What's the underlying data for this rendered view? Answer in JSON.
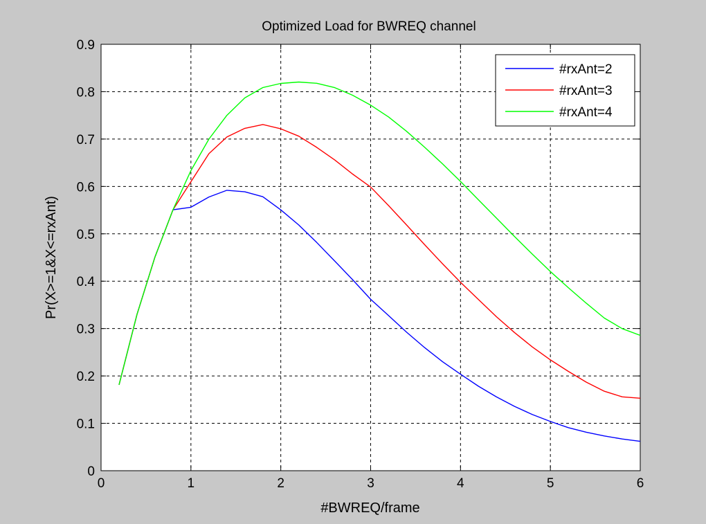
{
  "chart_data": {
    "type": "line",
    "title": "Optimized Load for BWREQ channel",
    "xlabel": "#BWREQ/frame",
    "ylabel": "Pr(X>=1&X<=rxAnt)",
    "xlim": [
      0,
      6
    ],
    "ylim": [
      0,
      0.9
    ],
    "xticks": [
      0,
      1,
      2,
      3,
      4,
      5,
      6
    ],
    "xtick_labels": [
      "0",
      "1",
      "2",
      "3",
      "4",
      "5",
      "6"
    ],
    "yticks": [
      0,
      0.1,
      0.2,
      0.3,
      0.4,
      0.5,
      0.6,
      0.7,
      0.8,
      0.9
    ],
    "ytick_labels": [
      "0",
      "0.1",
      "0.2",
      "0.3",
      "0.4",
      "0.5",
      "0.6",
      "0.7",
      "0.8",
      "0.9"
    ],
    "grid": true,
    "legend_position": "top-right",
    "x": [
      0.2,
      0.4,
      0.6,
      0.8,
      1.0,
      1.2,
      1.4,
      1.6,
      1.8,
      2.0,
      2.2,
      2.4,
      2.6,
      2.8,
      3.0,
      3.2,
      3.4,
      3.6,
      3.8,
      4.0,
      4.2,
      4.4,
      4.6,
      4.8,
      5.0,
      5.2,
      5.4,
      5.6,
      5.8,
      6.0
    ],
    "series": [
      {
        "name": "#rxAnt=2",
        "color": "#0000ff",
        "values": [
          0.1813,
          0.3297,
          0.4512,
          0.5507,
          0.5561,
          0.5777,
          0.5918,
          0.5886,
          0.5783,
          0.5505,
          0.5187,
          0.4817,
          0.4425,
          0.4031,
          0.3618,
          0.3272,
          0.2923,
          0.2599,
          0.2299,
          0.2036,
          0.1782,
          0.1557,
          0.1359,
          0.1185,
          0.1039,
          0.0909,
          0.0812,
          0.0734,
          0.0669,
          0.062
        ]
      },
      {
        "name": "#rxAnt=3",
        "color": "#ff0000",
        "values": [
          0.1813,
          0.3297,
          0.4512,
          0.5507,
          0.6099,
          0.6692,
          0.7043,
          0.7227,
          0.7306,
          0.7216,
          0.7061,
          0.6825,
          0.6558,
          0.6261,
          0.5988,
          0.5594,
          0.5187,
          0.4772,
          0.4367,
          0.3979,
          0.3611,
          0.3249,
          0.2917,
          0.2611,
          0.2339,
          0.2097,
          0.1868,
          0.1677,
          0.1559,
          0.153
        ]
      },
      {
        "name": "#rxAnt=4",
        "color": "#00ff00",
        "values": [
          0.1813,
          0.3297,
          0.4512,
          0.5507,
          0.6334,
          0.6998,
          0.7501,
          0.7869,
          0.8087,
          0.8175,
          0.8204,
          0.8177,
          0.8085,
          0.7925,
          0.7716,
          0.7465,
          0.7163,
          0.6829,
          0.6475,
          0.6106,
          0.5717,
          0.5331,
          0.4945,
          0.4569,
          0.4204,
          0.3863,
          0.3534,
          0.3222,
          0.2998,
          0.2857
        ]
      }
    ]
  }
}
